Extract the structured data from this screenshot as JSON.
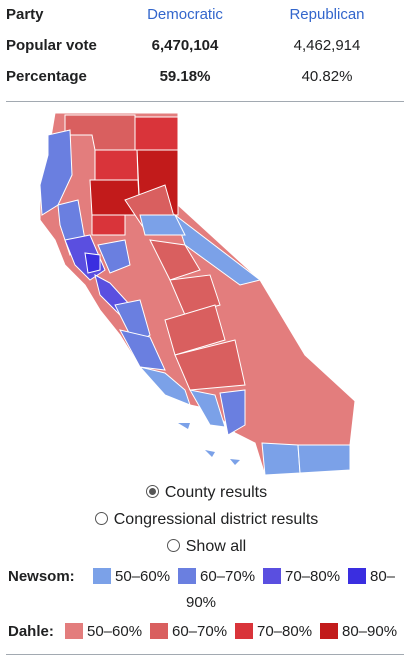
{
  "results": {
    "party_label": "Party",
    "dem_name": "Democratic",
    "rep_name": "Republican",
    "popular_vote_label": "Popular vote",
    "dem_votes": "6,470,104",
    "rep_votes": "4,462,914",
    "percentage_label": "Percentage",
    "dem_pct": "59.18%",
    "rep_pct": "40.82%"
  },
  "colors": {
    "dem_link": "#3366cc",
    "newsom": [
      "#7ba1e8",
      "#6a7fe0",
      "#5a4fe0",
      "#3a2ee0"
    ],
    "dahle": [
      "#e37d7d",
      "#d95f5f",
      "#d9343a",
      "#c21b1b"
    ]
  },
  "map_options": {
    "county": "County results",
    "district": "Congressional district results",
    "show_all": "Show all",
    "selected": "County results"
  },
  "legend": {
    "newsom_label": "Newsom:",
    "dahle_label": "Dahle:",
    "ranges": [
      "50–60%",
      "60–70%",
      "70–80%",
      "80–",
      "90%"
    ],
    "dahle_ranges": [
      "50–60%",
      "60–70%",
      "70–80%",
      "80–90%"
    ]
  },
  "map": {
    "icon": "california-county-map"
  }
}
